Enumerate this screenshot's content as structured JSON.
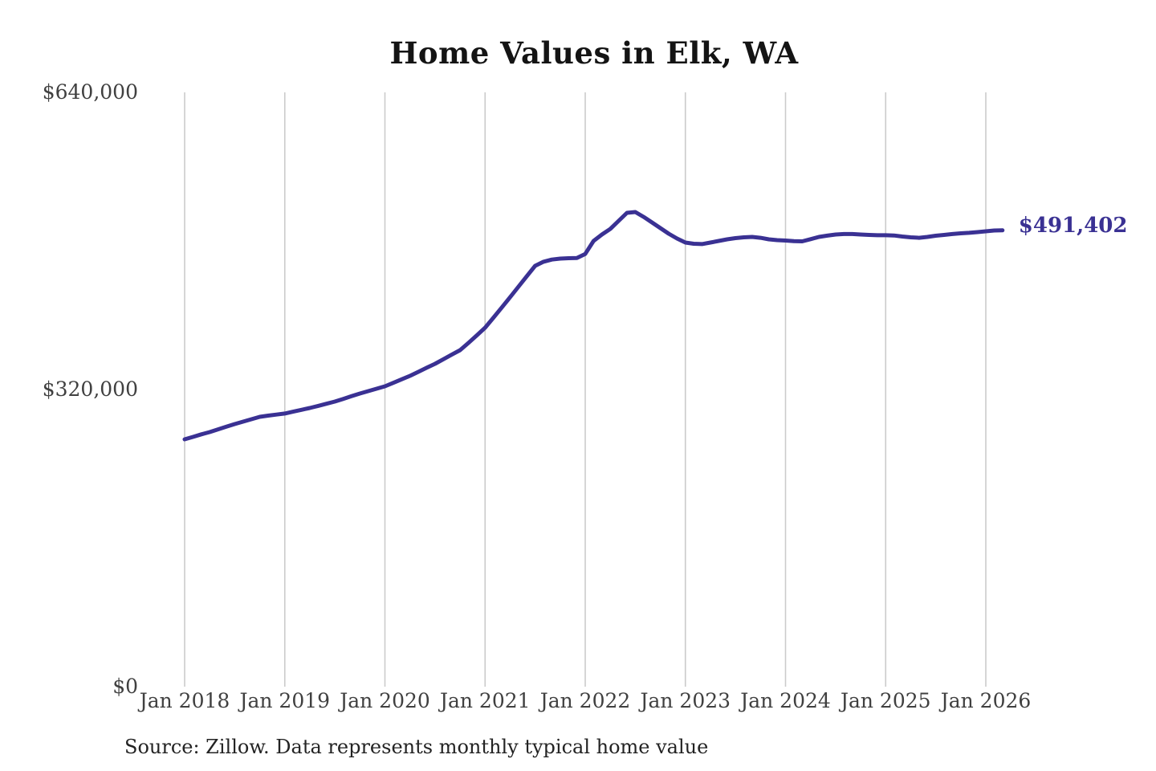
{
  "chart": {
    "title": "Home Values in Elk, WA",
    "source": "Source: Zillow. Data represents monthly typical home value",
    "annotation": {
      "text": "$491,402",
      "value": 491402
    },
    "colors": {
      "line": "#3a3193",
      "grid": "#cbcbcb",
      "title_text": "#141414",
      "tick_text": "#404040",
      "source_text": "#232323",
      "background": "#ffffff"
    }
  },
  "chart_data": {
    "type": "line",
    "title": "Home Values in Elk, WA",
    "series_name": "Monthly typical home value (Zillow)",
    "frequency": "monthly",
    "x_start": "Jan 2018",
    "x_end": "Mar 2026",
    "xlabel": "",
    "ylabel": "",
    "ylim": [
      0,
      640000
    ],
    "grid": "vertical-only",
    "legend": "none",
    "end_annotation": {
      "text": "$491,402",
      "value": 491402
    },
    "y_ticks": [
      {
        "label": "$0",
        "value": 0
      },
      {
        "label": "$320,000",
        "value": 320000
      },
      {
        "label": "$640,000",
        "value": 640000
      }
    ],
    "x_ticks": [
      {
        "label": "Jan 2018",
        "month_index": 0
      },
      {
        "label": "Jan 2019",
        "month_index": 12
      },
      {
        "label": "Jan 2020",
        "month_index": 24
      },
      {
        "label": "Jan 2021",
        "month_index": 36
      },
      {
        "label": "Jan 2022",
        "month_index": 48
      },
      {
        "label": "Jan 2023",
        "month_index": 60
      },
      {
        "label": "Jan 2024",
        "month_index": 72
      },
      {
        "label": "Jan 2025",
        "month_index": 84
      },
      {
        "label": "Jan 2026",
        "month_index": 96
      }
    ],
    "months": [
      "2018-01",
      "2018-02",
      "2018-03",
      "2018-04",
      "2018-05",
      "2018-06",
      "2018-07",
      "2018-08",
      "2018-09",
      "2018-10",
      "2018-11",
      "2018-12",
      "2019-01",
      "2019-02",
      "2019-03",
      "2019-04",
      "2019-05",
      "2019-06",
      "2019-07",
      "2019-08",
      "2019-09",
      "2019-10",
      "2019-11",
      "2019-12",
      "2020-01",
      "2020-02",
      "2020-03",
      "2020-04",
      "2020-05",
      "2020-06",
      "2020-07",
      "2020-08",
      "2020-09",
      "2020-10",
      "2020-11",
      "2020-12",
      "2021-01",
      "2021-02",
      "2021-03",
      "2021-04",
      "2021-05",
      "2021-06",
      "2021-07",
      "2021-08",
      "2021-09",
      "2021-10",
      "2021-11",
      "2021-12",
      "2022-01",
      "2022-02",
      "2022-03",
      "2022-04",
      "2022-05",
      "2022-06",
      "2022-07",
      "2022-08",
      "2022-09",
      "2022-10",
      "2022-11",
      "2022-12",
      "2023-01",
      "2023-02",
      "2023-03",
      "2023-04",
      "2023-05",
      "2023-06",
      "2023-07",
      "2023-08",
      "2023-09",
      "2023-10",
      "2023-11",
      "2023-12",
      "2024-01",
      "2024-02",
      "2024-03",
      "2024-04",
      "2024-05",
      "2024-06",
      "2024-07",
      "2024-08",
      "2024-09",
      "2024-10",
      "2024-11",
      "2024-12",
      "2025-01",
      "2025-02",
      "2025-03",
      "2025-04",
      "2025-05",
      "2025-06",
      "2025-07",
      "2025-08",
      "2025-09",
      "2025-10",
      "2025-11",
      "2025-12",
      "2026-01",
      "2026-02",
      "2026-03"
    ],
    "values": [
      266400,
      269000,
      271700,
      274200,
      277100,
      280000,
      282800,
      285400,
      288000,
      290600,
      291900,
      293000,
      294100,
      296100,
      298100,
      300100,
      302400,
      304700,
      307000,
      309900,
      312800,
      315700,
      318300,
      320900,
      323500,
      327200,
      331000,
      334700,
      339000,
      343400,
      347700,
      352600,
      357500,
      362400,
      370200,
      378300,
      386600,
      397300,
      408300,
      419400,
      430700,
      442000,
      453200,
      457600,
      459900,
      461000,
      461400,
      461600,
      466000,
      480000,
      486900,
      492900,
      501600,
      510300,
      511100,
      505900,
      499900,
      493800,
      487800,
      482600,
      478300,
      477000,
      476600,
      478300,
      480000,
      481700,
      483000,
      483900,
      484300,
      483400,
      481700,
      480900,
      480400,
      479800,
      479600,
      481900,
      484300,
      485700,
      486900,
      487400,
      487400,
      486900,
      486500,
      486100,
      486100,
      485900,
      484800,
      483900,
      483400,
      484300,
      485600,
      486500,
      487400,
      488200,
      488700,
      489500,
      490400,
      491200,
      491402
    ]
  }
}
